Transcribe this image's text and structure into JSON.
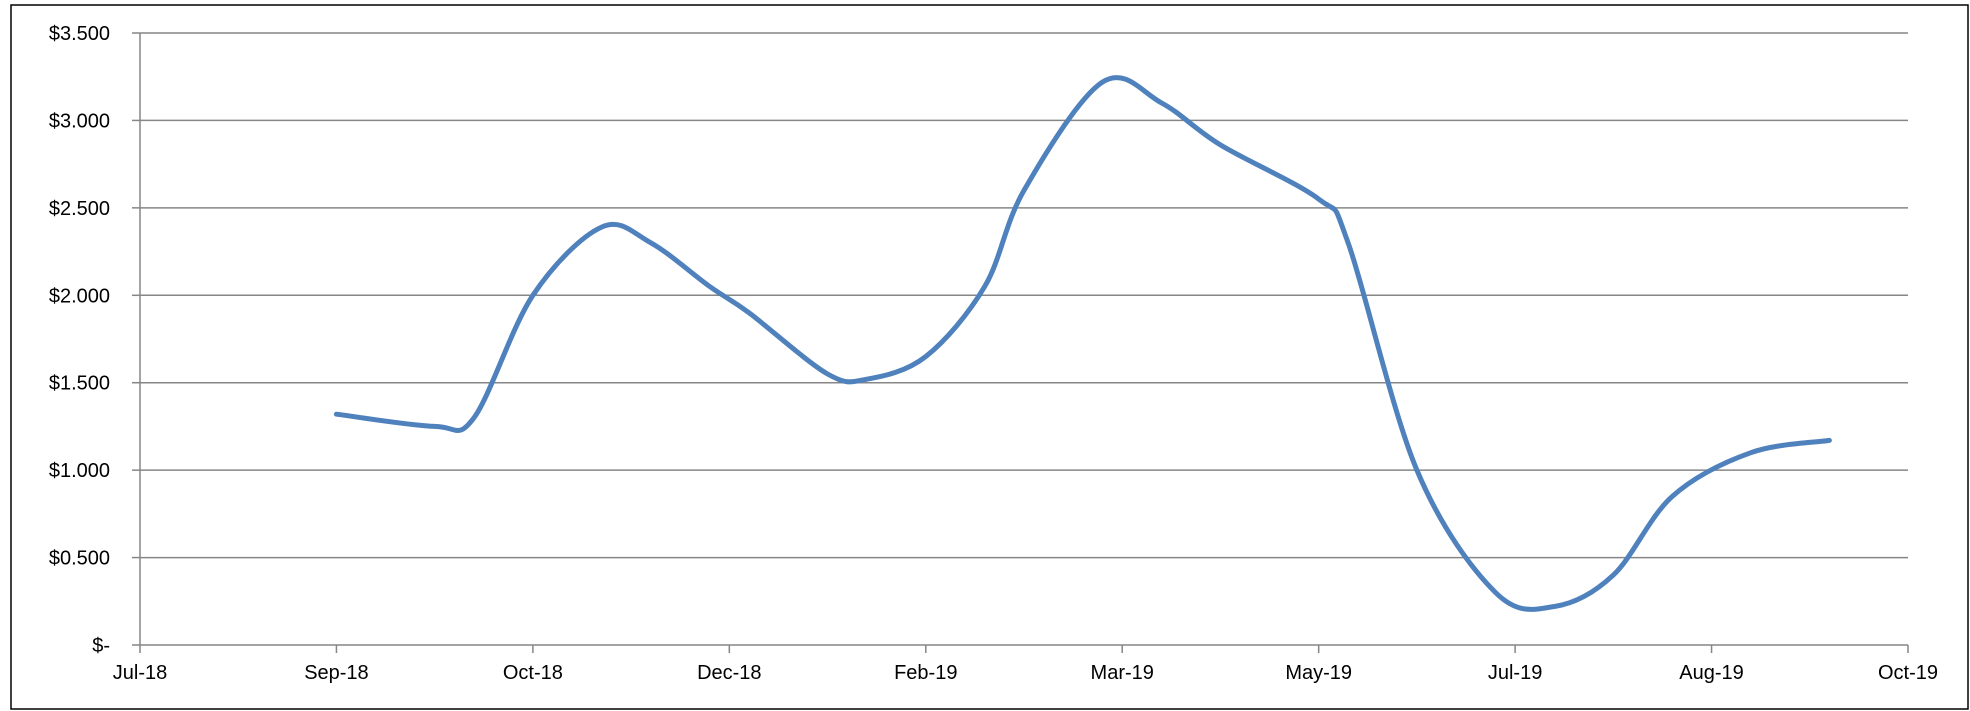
{
  "title": "",
  "chart_data": {
    "type": "line",
    "title": "",
    "xlabel": "",
    "ylabel": "",
    "x_tick_labels": [
      "Jul-18",
      "Sep-18",
      "Oct-18",
      "Dec-18",
      "Feb-19",
      "Mar-19",
      "May-19",
      "Jul-19",
      "Aug-19",
      "Oct-19"
    ],
    "y_tick_labels": [
      "$-",
      "$0.500",
      "$1.000",
      "$1.500",
      "$2.000",
      "$2.500",
      "$3.000",
      "$3.500"
    ],
    "y_tick_values": [
      0,
      0.5,
      1.0,
      1.5,
      2.0,
      2.5,
      3.0,
      3.5
    ],
    "ylim": [
      0,
      3.5
    ],
    "x_tick_index": [
      0,
      1,
      2,
      3,
      4,
      5,
      6,
      7,
      8,
      9
    ],
    "series": [
      {
        "color": "#4f81bd",
        "smooth": true,
        "x": [
          1.0,
          1.5,
          1.7,
          2.0,
          2.35,
          2.6,
          2.9,
          3.1,
          3.5,
          3.7,
          4.0,
          4.3,
          4.5,
          4.9,
          5.2,
          5.5,
          6.0,
          6.15,
          6.5,
          6.9,
          7.2,
          7.5,
          7.8,
          8.2,
          8.6
        ],
        "y": [
          1.32,
          1.25,
          1.3,
          2.0,
          2.39,
          2.3,
          2.05,
          1.9,
          1.55,
          1.52,
          1.65,
          2.05,
          2.6,
          3.22,
          3.1,
          2.86,
          2.55,
          2.3,
          1.0,
          0.3,
          0.22,
          0.4,
          0.85,
          1.1,
          1.17
        ]
      }
    ],
    "grid": "horizontal",
    "legend": "none",
    "colors": {
      "line": "#4f81bd",
      "grid": "#868686",
      "axis": "#868686",
      "frame": "#000000"
    }
  }
}
